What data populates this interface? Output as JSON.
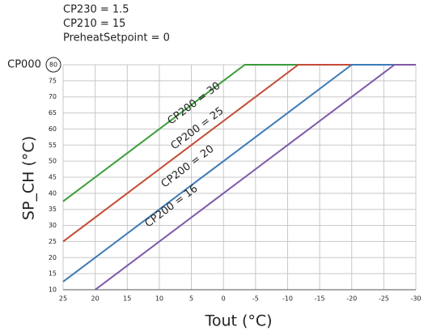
{
  "chart_data": {
    "type": "line",
    "header": [
      "CP230 = 1.5",
      "CP210 = 15",
      "PreheatSetpoint = 0"
    ],
    "annotation": "CP000",
    "y_label": "SP_CH (°C)",
    "x_label": "Tout (°C)",
    "x": [
      25,
      20,
      0,
      -3.33,
      -11.67,
      -20,
      -26.67,
      -30
    ],
    "series": [
      {
        "name": "CP200 = 30",
        "color": "#3a9c3a",
        "values": [
          37.5,
          45,
          75,
          80,
          80,
          80,
          80,
          80
        ]
      },
      {
        "name": "CP200 = 25",
        "color": "#c44a37",
        "values": [
          25,
          32.5,
          62.5,
          67.5,
          80,
          80,
          80,
          80
        ]
      },
      {
        "name": "CP200 = 20",
        "color": "#3d7bb8",
        "values": [
          12.5,
          20,
          50,
          55,
          67.5,
          80,
          80,
          80
        ]
      },
      {
        "name": "CP200 = 16",
        "color": "#7e58a8",
        "values": [
          null,
          10,
          40,
          45,
          57.5,
          70,
          80,
          80
        ]
      }
    ],
    "xlim": [
      25,
      -30
    ],
    "xticks": [
      25,
      20,
      15,
      10,
      5,
      0,
      -5,
      -10,
      -15,
      -20,
      -25,
      -30
    ],
    "ylim": [
      10,
      80
    ],
    "yticks": [
      10,
      15,
      20,
      25,
      30,
      35,
      40,
      45,
      50,
      55,
      60,
      65,
      70,
      75,
      80
    ],
    "grid": true
  }
}
